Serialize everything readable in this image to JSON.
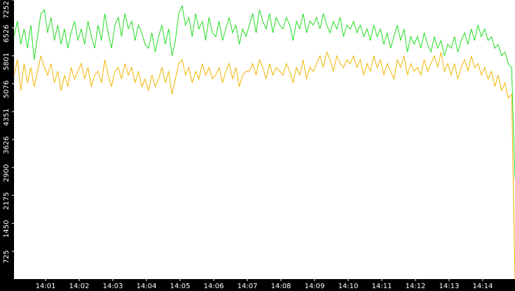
{
  "chart_data": {
    "type": "line",
    "ylim": [
      0,
      7252
    ],
    "yticks": [
      725,
      1450,
      2175,
      2900,
      3626,
      4351,
      5076,
      5801,
      6526,
      7252
    ],
    "xlim": [
      0,
      149
    ],
    "xticks": [
      {
        "value": 9.4,
        "label": "14:01"
      },
      {
        "value": 19.4,
        "label": "14:02"
      },
      {
        "value": 29.4,
        "label": "14:03"
      },
      {
        "value": 39.4,
        "label": "14:04"
      },
      {
        "value": 49.4,
        "label": "14:05"
      },
      {
        "value": 59.4,
        "label": "14:06"
      },
      {
        "value": 69.4,
        "label": "14:07"
      },
      {
        "value": 79.4,
        "label": "14:08"
      },
      {
        "value": 89.4,
        "label": "14:09"
      },
      {
        "value": 99.4,
        "label": "14:10"
      },
      {
        "value": 109.4,
        "label": "14:11"
      },
      {
        "value": 119.4,
        "label": "14:12"
      },
      {
        "value": 129.4,
        "label": "14:13"
      },
      {
        "value": 139.4,
        "label": "14:14"
      }
    ],
    "series": [
      {
        "color": "#22dd22",
        "values": [
          6300,
          6700,
          6100,
          6500,
          6000,
          6600,
          5700,
          6300,
          6900,
          7000,
          6400,
          6800,
          6200,
          6600,
          6100,
          6500,
          6000,
          6400,
          6700,
          6200,
          6500,
          6100,
          6700,
          6300,
          6000,
          6600,
          6200,
          6900,
          6400,
          6000,
          6600,
          6800,
          6300,
          6900,
          6500,
          6700,
          6200,
          6600,
          6400,
          6100,
          6000,
          6400,
          5900,
          6300,
          6600,
          6100,
          6500,
          5800,
          6200,
          6900,
          7100,
          6600,
          6800,
          6300,
          6900,
          6500,
          6700,
          6200,
          6800,
          6400,
          6300,
          6700,
          6200,
          6500,
          6800,
          6400,
          6600,
          6100,
          6500,
          6300,
          6600,
          6900,
          6400,
          7000,
          6700,
          6500,
          6900,
          6400,
          6800,
          6600,
          6500,
          6800,
          6600,
          6200,
          6700,
          6500,
          6900,
          6400,
          6700,
          6600,
          6800,
          6500,
          6900,
          6600,
          6400,
          6700,
          6500,
          6800,
          6300,
          6600,
          6500,
          6700,
          6400,
          6600,
          6300,
          6500,
          6200,
          6600,
          6300,
          6500,
          6100,
          6400,
          6000,
          6300,
          6600,
          6200,
          6500,
          5900,
          6300,
          6100,
          6300,
          6000,
          6400,
          6100,
          5900,
          6300,
          6000,
          6200,
          5800,
          6100,
          6000,
          6300,
          5900,
          6200,
          6400,
          6100,
          6500,
          6200,
          6600,
          6300,
          6500,
          6200,
          6300,
          6000,
          6100,
          5800,
          5900,
          5600,
          5500,
          2600
        ]
      },
      {
        "color": "#f0b400",
        "values": [
          5300,
          5700,
          4900,
          5600,
          5100,
          5500,
          5000,
          5400,
          5800,
          5500,
          5300,
          5600,
          5100,
          5400,
          4900,
          5300,
          5000,
          5500,
          5200,
          5400,
          5600,
          5200,
          5500,
          5000,
          5300,
          5400,
          5100,
          5700,
          5300,
          5000,
          5400,
          5500,
          5200,
          5600,
          5300,
          5500,
          5100,
          5400,
          5000,
          5200,
          4900,
          5300,
          5000,
          5200,
          5500,
          5100,
          5400,
          4800,
          5200,
          5600,
          5700,
          5300,
          5500,
          5100,
          5400,
          5200,
          5600,
          5300,
          5500,
          5200,
          5300,
          5500,
          5100,
          5400,
          5600,
          5200,
          5500,
          5000,
          5300,
          5400,
          5400,
          5600,
          5300,
          5700,
          5500,
          5200,
          5600,
          5300,
          5500,
          5400,
          5300,
          5600,
          5400,
          5100,
          5500,
          5300,
          5700,
          5200,
          5500,
          5400,
          5600,
          5800,
          5500,
          5900,
          5700,
          5400,
          5800,
          5600,
          5500,
          5700,
          5600,
          5800,
          5500,
          5700,
          5300,
          5600,
          5400,
          5800,
          5500,
          5700,
          5300,
          5600,
          5400,
          5200,
          5700,
          5500,
          5800,
          5300,
          5600,
          5400,
          5500,
          5300,
          5700,
          5400,
          5600,
          5800,
          5500,
          5900,
          5400,
          5600,
          5300,
          5600,
          5200,
          5500,
          5700,
          5400,
          5800,
          5500,
          5600,
          5300,
          5500,
          5200,
          5400,
          5000,
          5300,
          4900,
          5100,
          4700,
          4800,
          0
        ]
      }
    ]
  }
}
